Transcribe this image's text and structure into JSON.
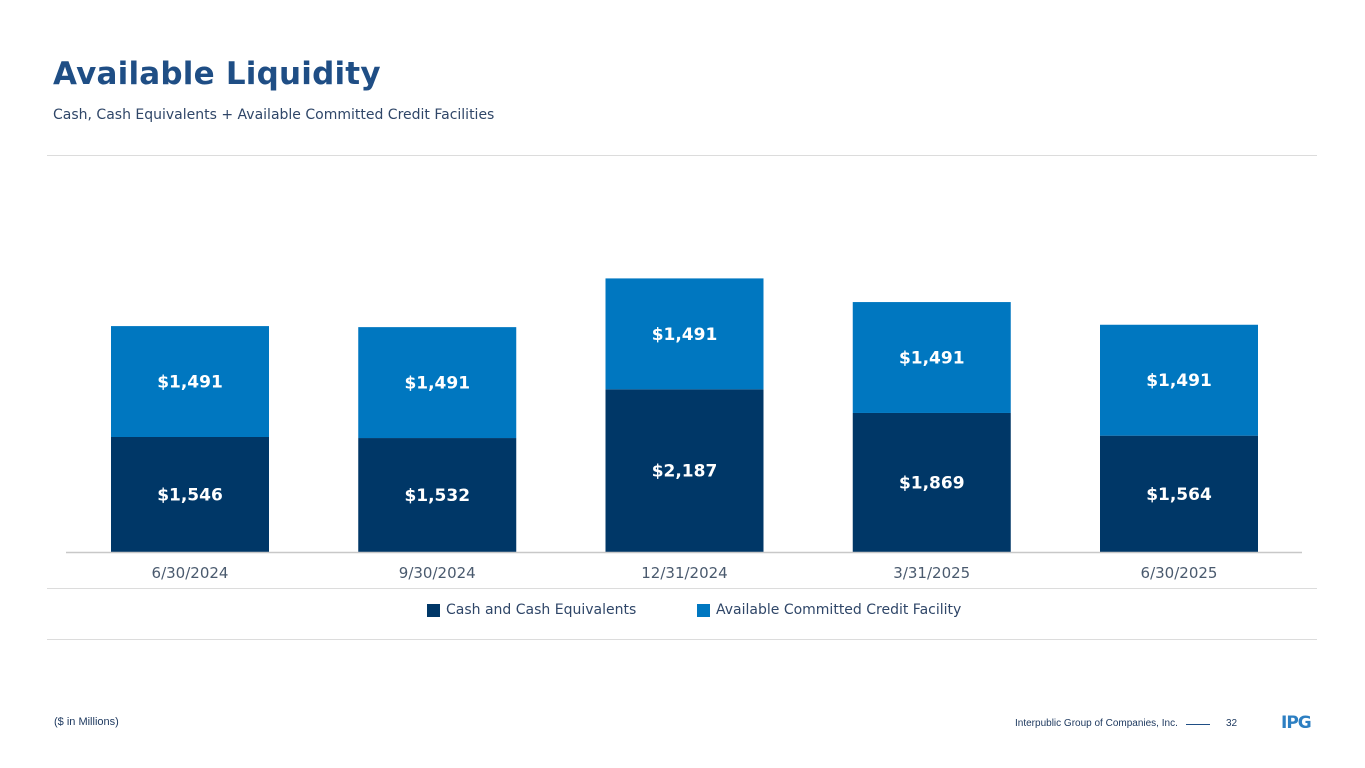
{
  "header": {
    "title": "Available Liquidity",
    "subtitle": "Cash, Cash Equivalents + Available Committed Credit Facilities"
  },
  "chart_data": {
    "type": "bar",
    "stacked": true,
    "categories": [
      "6/30/2024",
      "9/30/2024",
      "12/31/2024",
      "3/31/2025",
      "6/30/2025"
    ],
    "series": [
      {
        "name": "Cash and Cash Equivalents",
        "values": [
          1546,
          1532,
          2187,
          1869,
          1564
        ],
        "labels": [
          "$1,546",
          "$1,532",
          "$2,187",
          "$1,869",
          "$1,564"
        ],
        "color": "#003767"
      },
      {
        "name": "Available Committed Credit Facility",
        "values": [
          1491,
          1491,
          1491,
          1491,
          1491
        ],
        "labels": [
          "$1,491",
          "$1,491",
          "$1,491",
          "$1,491",
          "$1,491"
        ],
        "color": "#0077c0"
      }
    ],
    "ylim": [
      0,
      4000
    ],
    "grid": false,
    "legend_position": "bottom"
  },
  "footer": {
    "note": "($ in Millions)",
    "company": "Interpublic Group of Companies, Inc.",
    "page": "32",
    "logo_text": "IPG"
  }
}
